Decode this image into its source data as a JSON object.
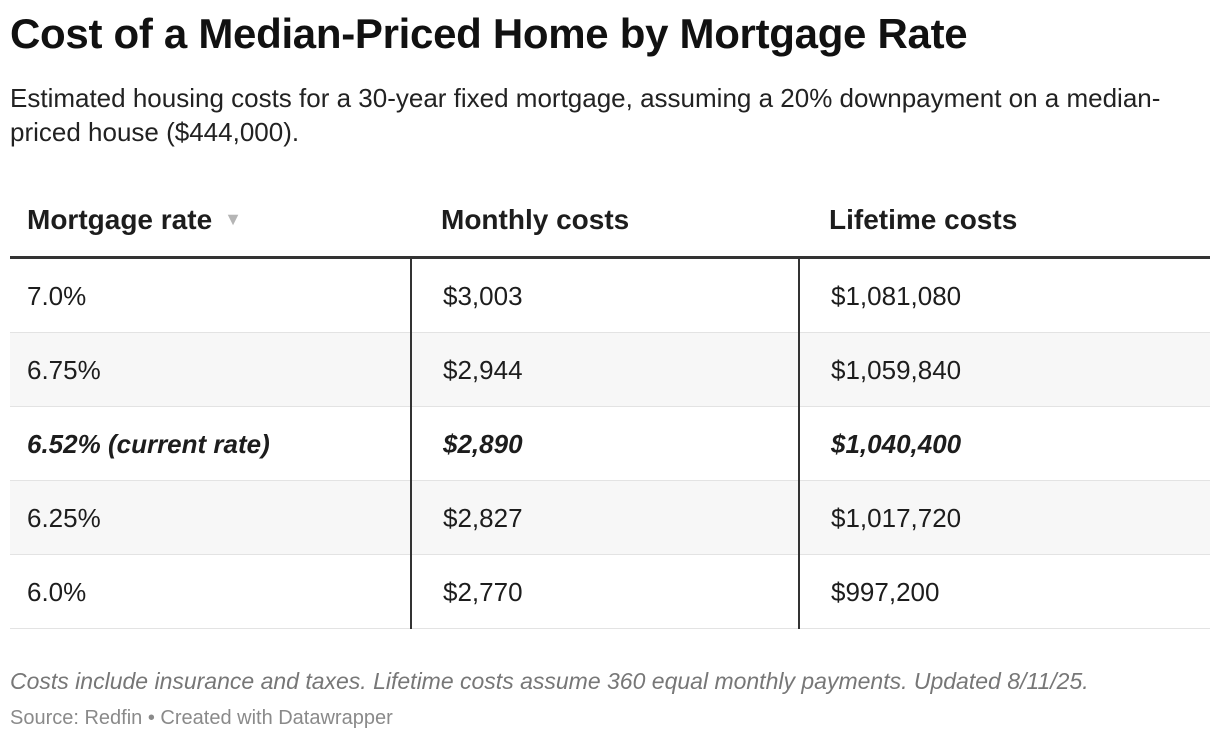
{
  "title": "Cost of a Median-Priced Home by Mortgage Rate",
  "subtitle": "Estimated housing costs for a 30-year fixed mortgage, assuming a 20% downpayment on a median-priced house ($444,000).",
  "table": {
    "headers": [
      "Mortgage rate",
      "Monthly costs",
      "Lifetime costs"
    ],
    "sort_icon": "sort-down-triangle-icon",
    "sort_glyph": "▼"
  },
  "notes": "Costs include insurance and taxes. Lifetime costs assume 360 equal monthly payments. Updated 8/11/25.",
  "source": "Source: Redfin • Created with Datawrapper",
  "chart_data": {
    "type": "table",
    "title": "Cost of a Median-Priced Home by Mortgage Rate",
    "columns": [
      "Mortgage rate",
      "Monthly costs",
      "Lifetime costs"
    ],
    "sort": {
      "column": "Mortgage rate",
      "order": "descending"
    },
    "highlighted_row": 2,
    "rows": [
      [
        "7.0%",
        "$3,003",
        "$1,081,080"
      ],
      [
        "6.75%",
        "$2,944",
        "$1,059,840"
      ],
      [
        "6.52% (current rate)",
        "$2,890",
        "$1,040,400"
      ],
      [
        "6.25%",
        "$2,827",
        "$1,017,720"
      ],
      [
        "6.0%",
        "$2,770",
        "$997,200"
      ]
    ]
  }
}
